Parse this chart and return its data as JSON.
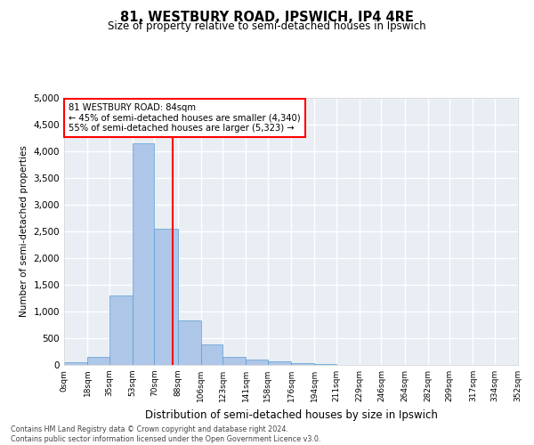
{
  "title": "81, WESTBURY ROAD, IPSWICH, IP4 4RE",
  "subtitle": "Size of property relative to semi-detached houses in Ipswich",
  "xlabel": "Distribution of semi-detached houses by size in Ipswich",
  "ylabel": "Number of semi-detached properties",
  "footnote1": "Contains HM Land Registry data © Crown copyright and database right 2024.",
  "footnote2": "Contains public sector information licensed under the Open Government Licence v3.0.",
  "annotation_line1": "81 WESTBURY ROAD: 84sqm",
  "annotation_line2": "← 45% of semi-detached houses are smaller (4,340)",
  "annotation_line3": "55% of semi-detached houses are larger (5,323) →",
  "property_size": 84,
  "bin_edges": [
    0,
    18,
    35,
    53,
    70,
    88,
    106,
    123,
    141,
    158,
    176,
    194,
    211,
    229,
    246,
    264,
    282,
    299,
    317,
    334,
    352
  ],
  "bin_counts": [
    50,
    150,
    1300,
    4150,
    2550,
    830,
    390,
    145,
    100,
    70,
    30,
    10,
    5,
    3,
    2,
    1,
    1,
    1,
    0,
    0
  ],
  "bar_color": "#aec6e8",
  "bar_edge_color": "#5a9fd4",
  "marker_color": "red",
  "bg_color": "#e8eef4",
  "grid_color": "white",
  "ylim": [
    0,
    5000
  ],
  "yticks": [
    0,
    500,
    1000,
    1500,
    2000,
    2500,
    3000,
    3500,
    4000,
    4500,
    5000
  ]
}
